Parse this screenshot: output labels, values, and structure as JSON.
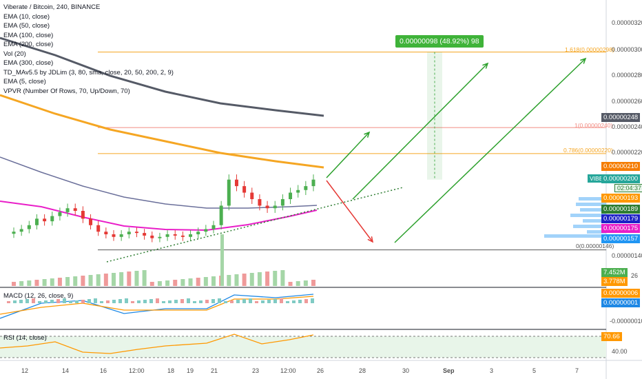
{
  "header": {
    "title": "Viberate / Bitcoin, 240, BINANCE",
    "indicators": [
      "EMA (10, close)",
      "EMA (50, close)",
      "EMA (100, close)",
      "EMA (200, close)",
      "Vol (20)",
      "EMA (300, close)",
      "TD_MAv5.5 by JDLim (3, 80, sma, close, 20, 50, 200, 2, 9)",
      "EMA (5, close)",
      "VPVR (Number Of Rows, 70, Up/Down, 70)"
    ]
  },
  "price_axis": {
    "labels": [
      "0.00000320",
      "0.00000300",
      "0.00000280",
      "0.00000260",
      "0.00000240",
      "0.00000220",
      "0.00000140"
    ],
    "tags": [
      {
        "text": "0.00000248",
        "color": "#555a66"
      },
      {
        "text": "0.00000210",
        "color": "#f57c00"
      },
      {
        "text": "0.00000200",
        "color": "#26a69a"
      },
      {
        "text": "02:04:37",
        "color": "#e9f5ec"
      },
      {
        "text": "0.00000193",
        "color": "#ff9800"
      },
      {
        "text": "0.00000189",
        "color": "#2e7d32"
      },
      {
        "text": "0.00000179",
        "color": "#1e22c7"
      },
      {
        "text": "0.00000175",
        "color": "#e91ec8"
      },
      {
        "text": "0.00000157",
        "color": "#2196f3"
      }
    ],
    "symbol": "VIBBTC"
  },
  "time_axis": {
    "labels": [
      "12",
      "14",
      "16",
      "12:00",
      "18",
      "19",
      "21",
      "23",
      "12:00",
      "26",
      "28",
      "30",
      "Sep",
      "3",
      "5",
      "7"
    ]
  },
  "fib_levels": [
    {
      "label": "1.618(0.00000298)",
      "color": "#f5a623"
    },
    {
      "label": "1(0.00000240)",
      "color": "#f28b82"
    },
    {
      "label": "0.786(0.00000220)",
      "color": "#f5a623"
    },
    {
      "label": "0(0.00000146)",
      "color": "#555555"
    }
  ],
  "measure": {
    "text": "0.00000098 (48.92%) 98"
  },
  "volume_pane": {
    "tags": [
      {
        "text": "7.452M",
        "color": "#4caf50"
      },
      {
        "text": "3.778M",
        "color": "#ff9800"
      }
    ],
    "extra": "26"
  },
  "macd_pane": {
    "legend": "MACD (12, 26, close, 9)",
    "tags": [
      {
        "text": "0.00000006",
        "color": "#ff9800"
      },
      {
        "text": "0.00000001",
        "color": "#1e88e5"
      }
    ],
    "axis_label": "-0.00000010"
  },
  "rsi_pane": {
    "legend": "RSI (14, close)",
    "tags": [
      {
        "text": "70.66",
        "color": "#ff9800"
      }
    ],
    "axis_label": "40.00"
  },
  "chart_data": {
    "type": "candlestick",
    "symbol": "VIBBTC",
    "timeframe": "240",
    "exchange": "BINANCE",
    "y_range": [
      1.3e-06,
      3.3e-06
    ],
    "candles_close": [
      1.6e-06,
      1.62e-06,
      1.65e-06,
      1.7e-06,
      1.68e-06,
      1.72e-06,
      1.75e-06,
      1.78e-06,
      1.76e-06,
      1.7e-06,
      1.65e-06,
      1.6e-06,
      1.58e-06,
      1.56e-06,
      1.58e-06,
      1.6e-06,
      1.59e-06,
      1.57e-06,
      1.55e-06,
      1.56e-06,
      1.58e-06,
      1.57e-06,
      1.56e-06,
      1.58e-06,
      1.6e-06,
      1.62e-06,
      1.65e-06,
      1.8e-06,
      2e-06,
      1.95e-06,
      1.9e-06,
      1.85e-06,
      1.8e-06,
      1.78e-06,
      1.8e-06,
      1.85e-06,
      1.9e-06,
      1.92e-06,
      1.95e-06,
      2e-06
    ],
    "last_price": 2e-06,
    "key_values": {
      "ema_300": 2.48e-06,
      "ema_200": 2.1e-06,
      "ema_100": 1.89e-06,
      "ema_50": 1.79e-06,
      "ema_10": 1.93e-06,
      "ema_5": 1.75e-06,
      "vpvr_poc": 1.57e-06
    }
  }
}
